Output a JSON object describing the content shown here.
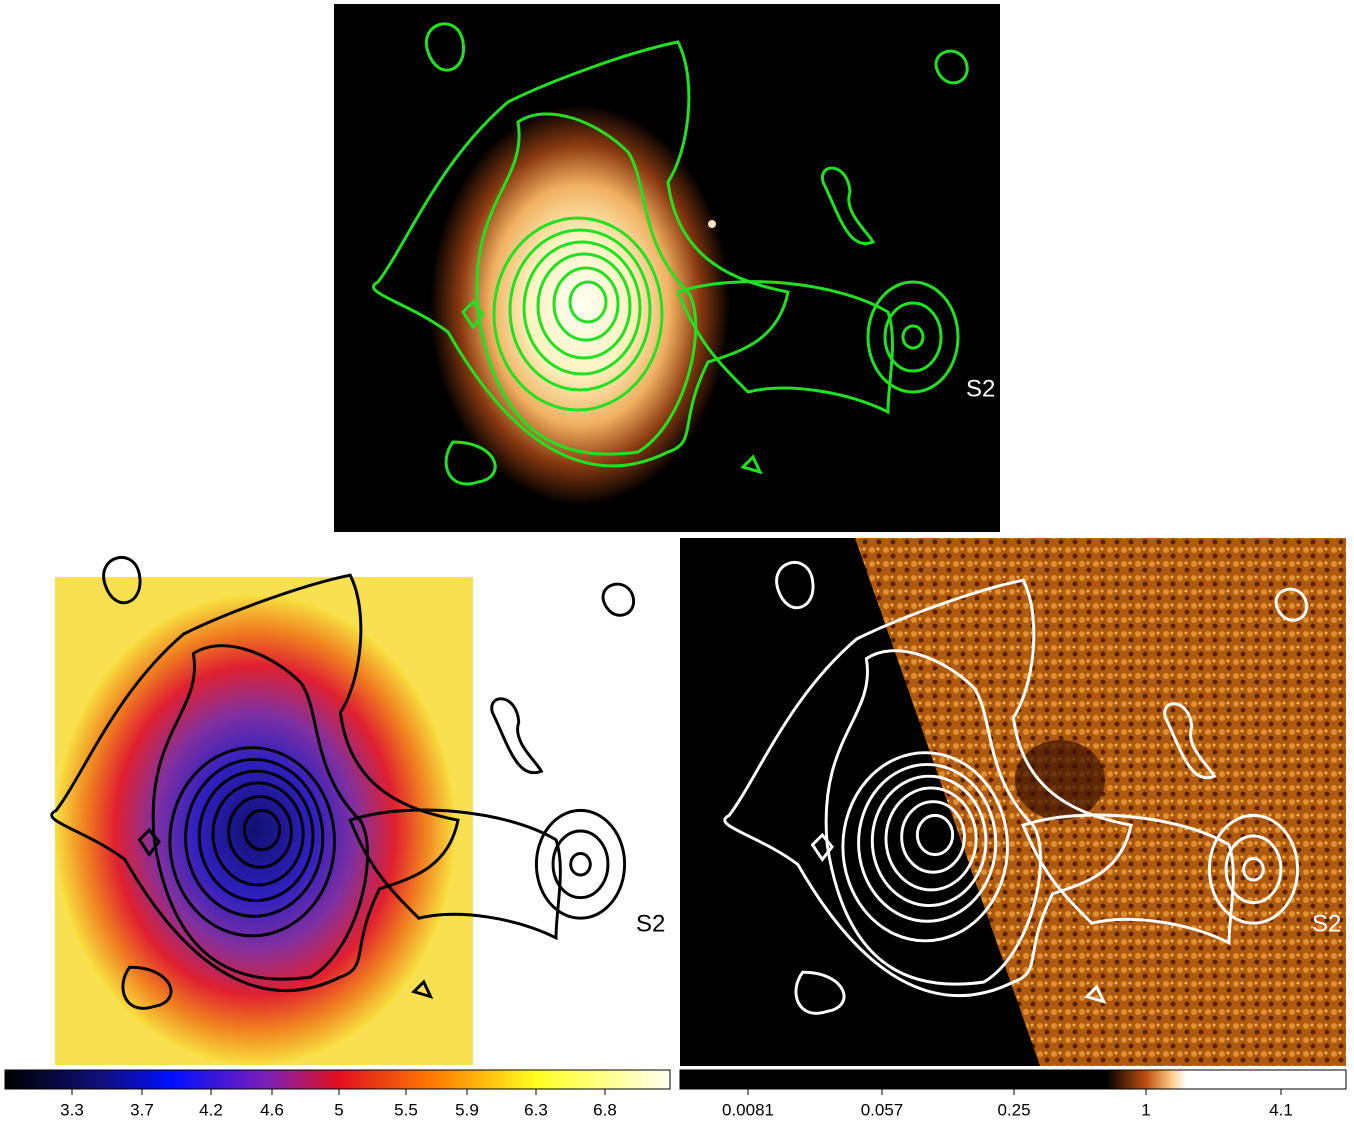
{
  "panels": [
    {
      "label": "S2"
    },
    {
      "label": "S2"
    },
    {
      "label": "S2"
    }
  ],
  "colorbars": [
    {
      "ticks": [
        "3.3",
        "3.7",
        "4.2",
        "4.6",
        "5",
        "5.5",
        "5.9",
        "6.3",
        "6.8"
      ]
    },
    {
      "ticks": [
        "0.0081",
        "0.057",
        "0.25",
        "1",
        "4.1"
      ]
    }
  ]
}
